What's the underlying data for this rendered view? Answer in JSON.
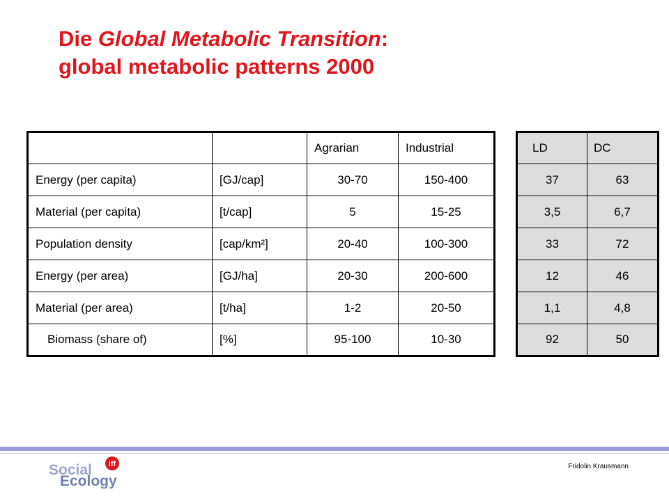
{
  "title": {
    "prefix": "Die ",
    "italic": "Global Metabolic Transition",
    "suffix": ":",
    "line2": "global metabolic patterns 2000"
  },
  "main_table": {
    "header": [
      "",
      "",
      "Agrarian",
      "Industrial"
    ],
    "rows": [
      [
        "Energy (per capita)",
        "[GJ/cap]",
        "30-70",
        "150-400"
      ],
      [
        "Material (per capita)",
        "[t/cap]",
        "5",
        "15-25"
      ],
      [
        "Population density",
        "[cap/km²]",
        "20-40",
        "100-300"
      ],
      [
        "Energy (per area)",
        "[GJ/ha]",
        "20-30",
        "200-600"
      ],
      [
        "Material (per area)",
        "[t/ha]",
        "1-2",
        "20-50"
      ],
      [
        "Biomass (share of)",
        "[%]",
        "95-100",
        "10-30"
      ]
    ]
  },
  "side_table": {
    "header": [
      "LD",
      "DC"
    ],
    "rows": [
      [
        "37",
        "63"
      ],
      [
        "3,5",
        "6,7"
      ],
      [
        "33",
        "72"
      ],
      [
        "12",
        "46"
      ],
      [
        "1,1",
        "4,8"
      ],
      [
        "92",
        "50"
      ]
    ]
  },
  "footer": {
    "logo": {
      "word1": "Social",
      "word2": "Ecology",
      "badge": "iff"
    },
    "author": "Fridolin Krausmann"
  },
  "colors": {
    "title": "#e0151c",
    "side_table_bg": "#dcdcdc",
    "footer_rule": "#9b9bd6"
  }
}
